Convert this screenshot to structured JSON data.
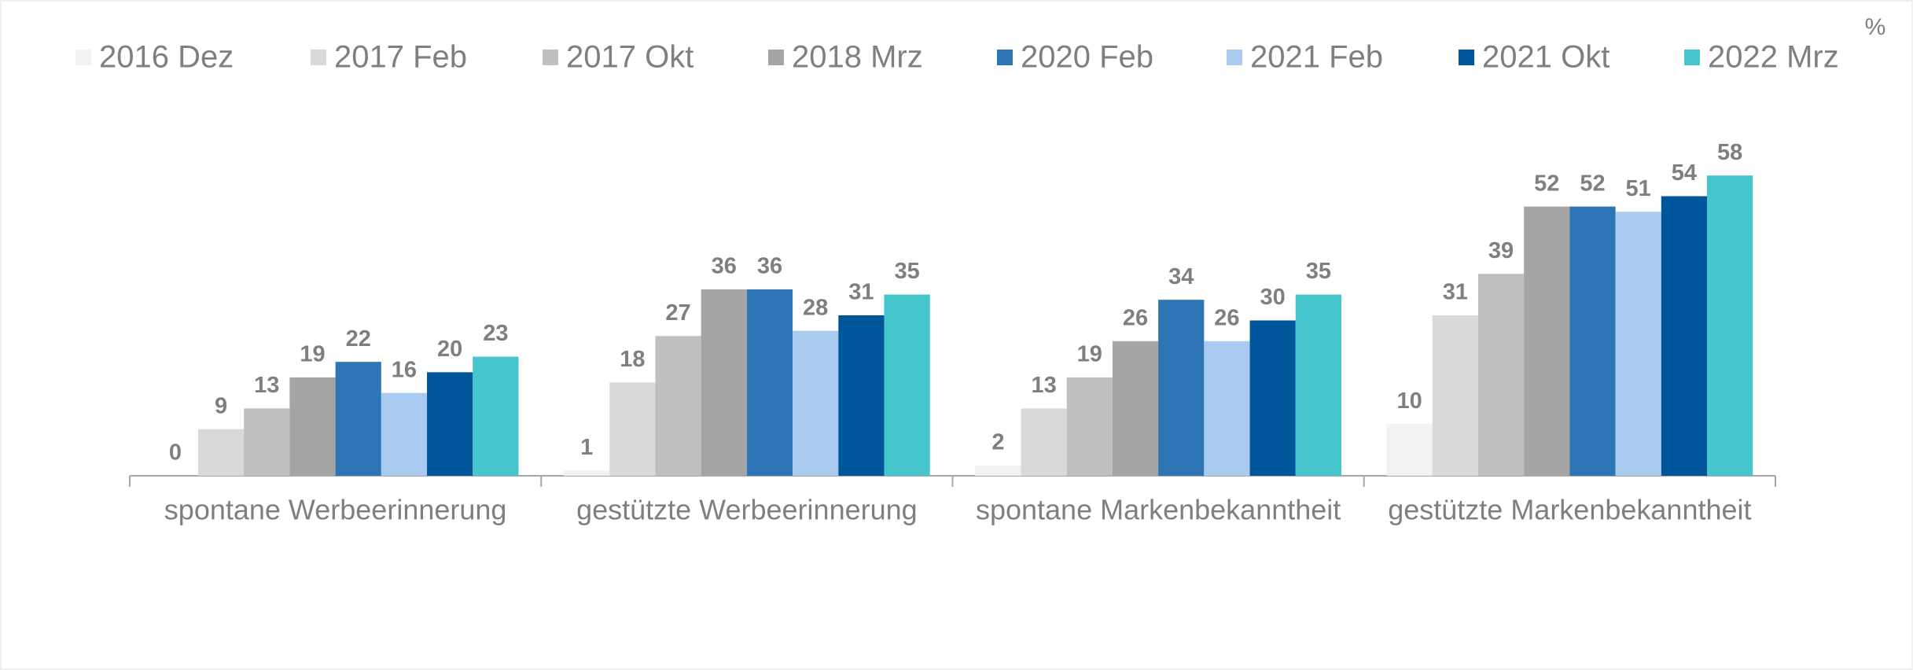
{
  "chart_data": {
    "type": "bar",
    "unit": "%",
    "categories": [
      "spontane Werbeerinnerung",
      "gestützte Werbeerinnerung",
      "spontane Markenbekanntheit",
      "gestützte Markenbekanntheit"
    ],
    "series": [
      {
        "name": "2016 Dez",
        "color": "#f2f2f2",
        "values": [
          0,
          1,
          2,
          10
        ]
      },
      {
        "name": "2017 Feb",
        "color": "#d9d9d9",
        "values": [
          9,
          18,
          13,
          31
        ]
      },
      {
        "name": "2017 Okt",
        "color": "#bfbfbf",
        "values": [
          13,
          27,
          19,
          39
        ]
      },
      {
        "name": "2018 Mrz",
        "color": "#a5a5a5",
        "values": [
          19,
          36,
          26,
          52
        ]
      },
      {
        "name": "2020 Feb",
        "color": "#2e75b6",
        "values": [
          22,
          36,
          34,
          52
        ]
      },
      {
        "name": "2021 Feb",
        "color": "#a9cbf0",
        "values": [
          16,
          28,
          26,
          51
        ]
      },
      {
        "name": "2021 Okt",
        "color": "#00569a",
        "values": [
          20,
          31,
          30,
          54
        ]
      },
      {
        "name": "2022 Mrz",
        "color": "#45c6cc",
        "values": [
          23,
          35,
          35,
          58
        ]
      }
    ],
    "ylim": [
      0,
      60
    ],
    "legend": "top"
  }
}
